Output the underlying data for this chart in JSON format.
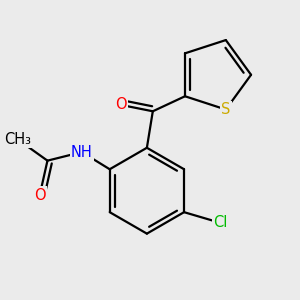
{
  "background_color": "#ebebeb",
  "line_color": "#000000",
  "bond_width": 1.6,
  "atom_colors": {
    "O": "#ff0000",
    "N": "#0000ff",
    "S": "#ccaa00",
    "Cl": "#00bb00",
    "C": "#000000",
    "H": "#000000"
  },
  "font_size": 10.5
}
